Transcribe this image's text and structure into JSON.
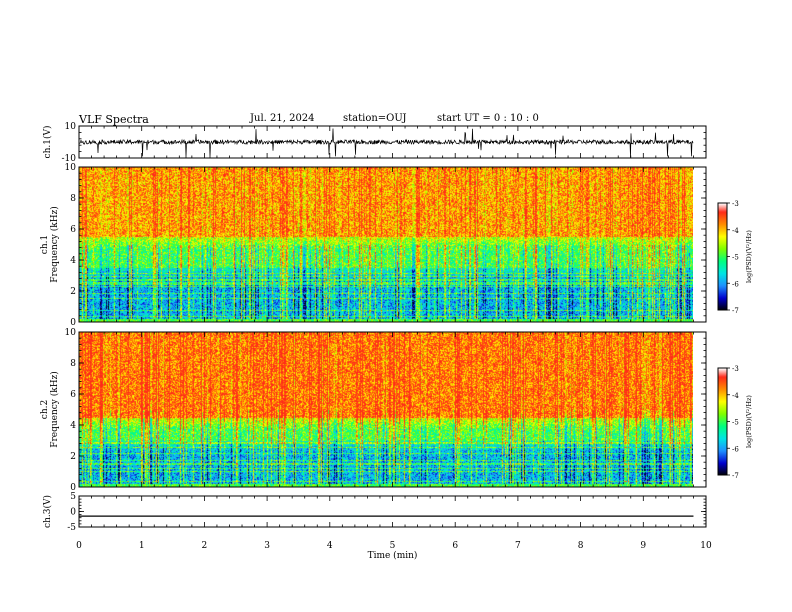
{
  "header": {
    "title": "VLF Spectra",
    "date": "Jul. 21, 2024",
    "station": "station=OUJ",
    "start": "start UT =  0 : 10 : 0"
  },
  "colors": {
    "spectrogram_scale": [
      "#000000",
      "#0000cd",
      "#1e90ff",
      "#00e5e5",
      "#00ff7f",
      "#7fff00",
      "#ffff00",
      "#ff8c00",
      "#ff2a1a",
      "#ffffff"
    ]
  },
  "chart_data": [
    {
      "type": "line",
      "panel": "ch1-waveform",
      "ylabel": "ch.1(V)",
      "ylim": [
        -10,
        10
      ],
      "yticks": [
        "10",
        "-10"
      ],
      "xlim": [
        0,
        10
      ],
      "description_values": {
        "baseline": 0,
        "typical_amplitude": 2,
        "spike_max": 10,
        "spike_min": -10
      }
    },
    {
      "type": "heatmap",
      "panel": "ch1-spectrogram",
      "ylabel": "ch.1\nFrequency (kHz)",
      "ylim": [
        0,
        10
      ],
      "yticks": [
        "0",
        "2",
        "4",
        "6",
        "8",
        "10"
      ],
      "xlim": [
        0,
        9.8
      ],
      "colorbar": {
        "label": "log(PSD)(V²/Hz)",
        "range": [
          -7,
          -3
        ],
        "ticks": [
          "-3",
          "-4",
          "-5",
          "-6",
          "-7"
        ]
      },
      "bands": [
        {
          "freq_range": [
            0,
            3.5
          ],
          "level": -5.8
        },
        {
          "freq_range": [
            3.5,
            5.5
          ],
          "level": -4.8
        },
        {
          "freq_range": [
            5.5,
            10
          ],
          "level": -3.6
        }
      ]
    },
    {
      "type": "heatmap",
      "panel": "ch2-spectrogram",
      "ylabel": "ch.2\nFrequency (kHz)",
      "ylim": [
        0,
        10
      ],
      "yticks": [
        "0",
        "2",
        "4",
        "6",
        "8",
        "10"
      ],
      "xlim": [
        0,
        9.8
      ],
      "colorbar": {
        "label": "log(PSD)(V²/Hz)",
        "range": [
          -7,
          -3
        ],
        "ticks": [
          "-3",
          "-4",
          "-5",
          "-6",
          "-7"
        ]
      },
      "bands": [
        {
          "freq_range": [
            0,
            3
          ],
          "level": -5.8
        },
        {
          "freq_range": [
            3,
            4.5
          ],
          "level": -4.8
        },
        {
          "freq_range": [
            4.5,
            10
          ],
          "level": -3.4
        }
      ]
    },
    {
      "type": "line",
      "panel": "ch3-waveform",
      "ylabel": "ch.3(V)",
      "ylim": [
        -5,
        5
      ],
      "yticks": [
        "5",
        "0",
        "-5"
      ],
      "xlim": [
        0,
        10
      ],
      "x": [
        0,
        9.8
      ],
      "values": [
        -1.5,
        -1.5
      ]
    }
  ],
  "xaxis": {
    "label": "Time (min)",
    "ticks": [
      "0",
      "1",
      "2",
      "3",
      "4",
      "5",
      "6",
      "7",
      "8",
      "9",
      "10"
    ],
    "range": [
      0,
      10
    ]
  }
}
